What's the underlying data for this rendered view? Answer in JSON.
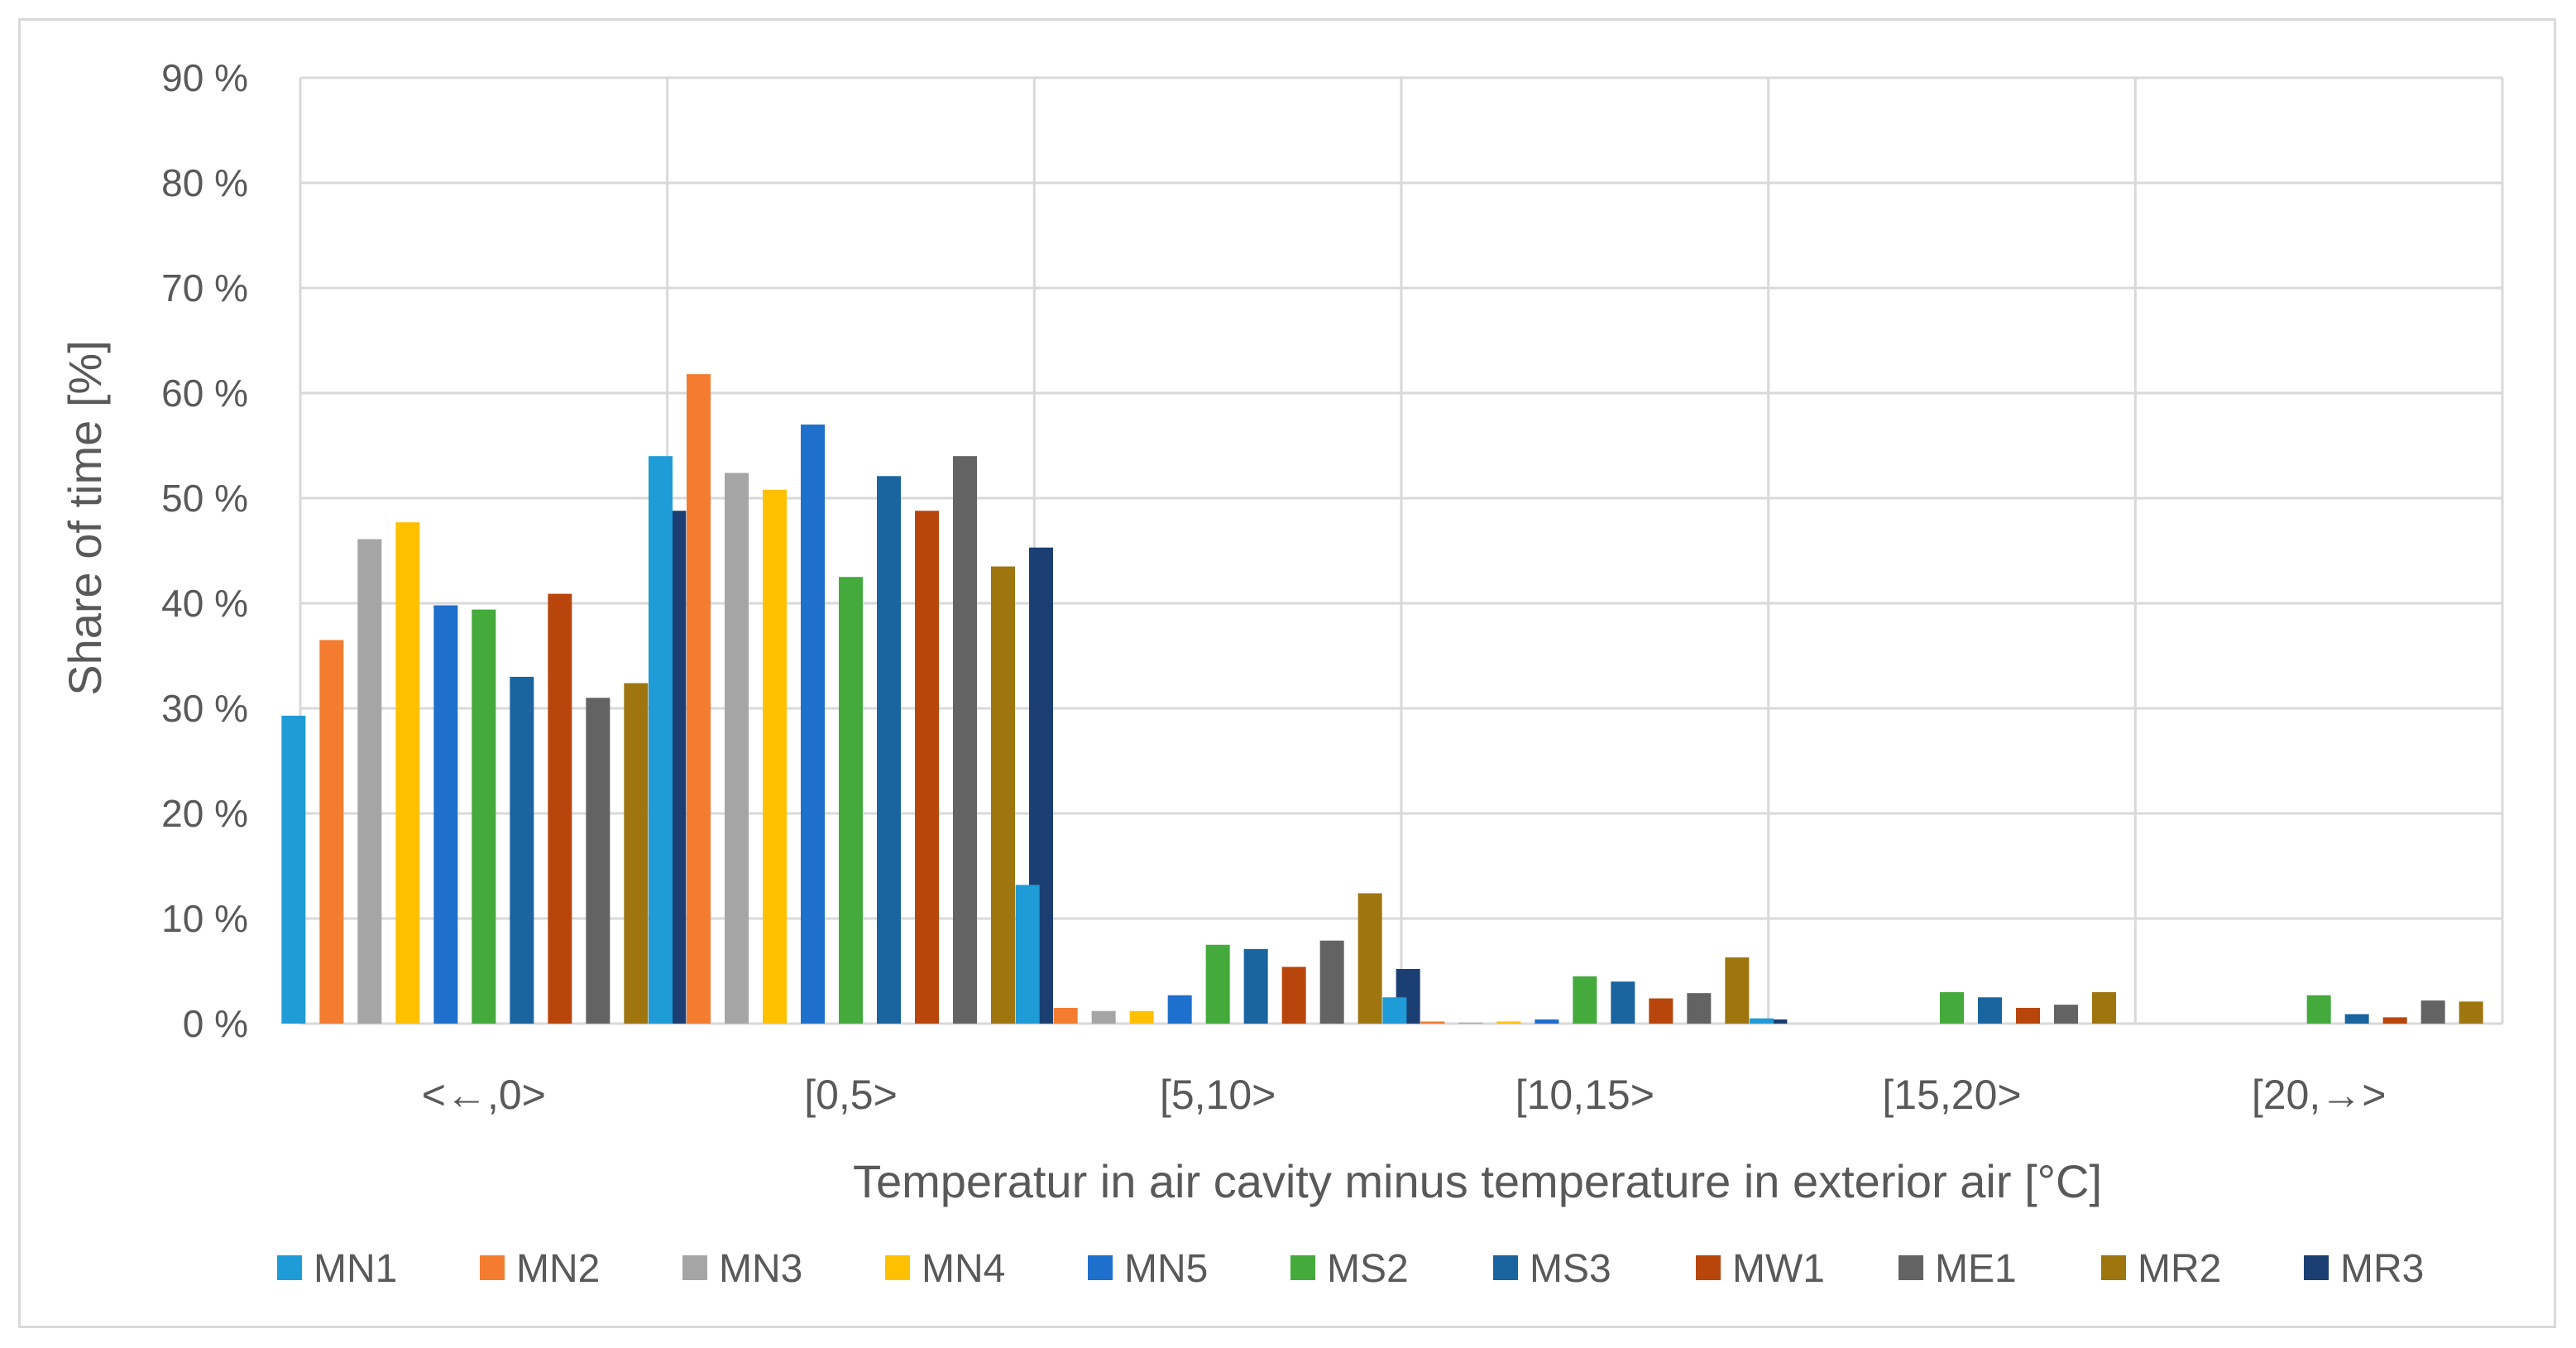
{
  "chart_data": {
    "type": "bar",
    "title": "",
    "xlabel": "Temperatur in air cavity minus temperature in exterior air [°C]",
    "ylabel": "Share of time [%]",
    "ylim": [
      0,
      90
    ],
    "y_ticks": [
      "0 %",
      "10 %",
      "20 %",
      "30 %",
      "40 %",
      "50 %",
      "60 %",
      "70 %",
      "80 %",
      "90 %"
    ],
    "y_tick_values": [
      0,
      10,
      20,
      30,
      40,
      50,
      60,
      70,
      80,
      90
    ],
    "grid": true,
    "legend_position": "bottom",
    "categories": [
      "<←,0>",
      "[0,5>",
      "[5,10>",
      "[10,15>",
      "[15,20>",
      "[20,→>"
    ],
    "series": [
      {
        "name": "MN1",
        "color": "#1f9bd7",
        "values": [
          29.3,
          54.0,
          13.2,
          2.5,
          0.5,
          0.0
        ]
      },
      {
        "name": "MN2",
        "color": "#f47c30",
        "values": [
          36.5,
          61.8,
          1.5,
          0.2,
          0.0,
          0.0
        ]
      },
      {
        "name": "MN3",
        "color": "#a5a5a5",
        "values": [
          46.1,
          52.4,
          1.2,
          0.1,
          0.0,
          0.0
        ]
      },
      {
        "name": "MN4",
        "color": "#ffc000",
        "values": [
          47.7,
          50.8,
          1.2,
          0.2,
          0.0,
          0.0
        ]
      },
      {
        "name": "MN5",
        "color": "#1f6fcd",
        "values": [
          39.8,
          57.0,
          2.7,
          0.4,
          0.0,
          0.0
        ]
      },
      {
        "name": "MS2",
        "color": "#44aa3c",
        "values": [
          39.4,
          42.5,
          7.5,
          4.5,
          3.0,
          2.7
        ]
      },
      {
        "name": "MS3",
        "color": "#1a64a0",
        "values": [
          33.0,
          52.1,
          7.1,
          4.0,
          2.5,
          0.9
        ]
      },
      {
        "name": "MW1",
        "color": "#b8460c",
        "values": [
          40.9,
          48.8,
          5.4,
          2.4,
          1.5,
          0.6
        ]
      },
      {
        "name": "ME1",
        "color": "#636363",
        "values": [
          31.0,
          54.0,
          7.9,
          2.9,
          1.8,
          2.2
        ]
      },
      {
        "name": "MR2",
        "color": "#9e750f",
        "values": [
          32.4,
          43.5,
          12.4,
          6.3,
          3.0,
          2.1
        ]
      },
      {
        "name": "MR3",
        "color": "#1b3f73",
        "values": [
          48.8,
          45.3,
          5.2,
          0.4,
          0.0,
          0.0
        ]
      }
    ]
  }
}
